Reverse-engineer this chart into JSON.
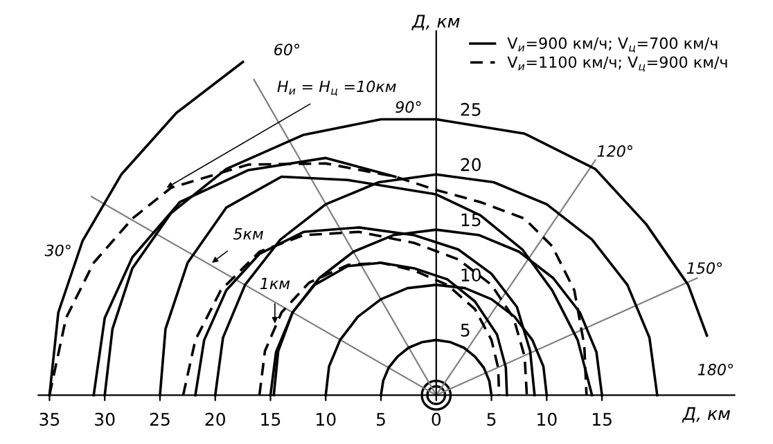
{
  "chart_data": {
    "type": "line",
    "xlabel": "Д, км",
    "ylabel": "Д, км",
    "xlim": [
      -36,
      27
    ],
    "ylim": [
      0,
      33
    ],
    "xticks": [
      {
        "value": -35,
        "label": "35"
      },
      {
        "value": -30,
        "label": "30"
      },
      {
        "value": -25,
        "label": "25"
      },
      {
        "value": -20,
        "label": "20"
      },
      {
        "value": -15,
        "label": "15"
      },
      {
        "value": -10,
        "label": "10"
      },
      {
        "value": -5,
        "label": "5"
      },
      0,
      5,
      10,
      15
    ],
    "yticks": [
      5,
      10,
      15,
      20,
      25
    ],
    "legend": "top right",
    "line_style": "solid",
    "annotations": [
      "30°",
      "60°",
      "90°",
      "120°",
      "150°",
      "180°",
      {
        "text": "H$_{и}$ = H$_{ц}$ =10км",
        "x": -24.4,
        "y": 18.8
      },
      {
        "text": "5км",
        "x": -20.3,
        "y": 12.0
      },
      {
        "text": "1км",
        "x": -14.6,
        "y": 6.5
      }
    ],
    "series": [
      {
        "color": "#808080",
        "x": [
          0,
          -31.2
        ],
        "values": [
          0,
          18.0
        ]
      },
      {
        "color": "#808080",
        "x": [
          0,
          -16.5
        ],
        "values": [
          0,
          28.6
        ]
      },
      {
        "color": "#808080",
        "x": [
          0,
          14.4
        ],
        "values": [
          0,
          21.3
        ]
      },
      {
        "color": "#808080",
        "x": [
          0,
          23.6
        ],
        "values": [
          0,
          10.6
        ]
      },
      {
        "color": "#000000",
        "x": [
          5,
          4.8,
          4.3,
          3.5,
          2.5,
          1.3,
          0,
          -1.3,
          -2.5,
          -3.5,
          -4.3,
          -4.8,
          -5
        ],
        "values": [
          0,
          1.3,
          2.5,
          3.5,
          4.3,
          4.8,
          5,
          4.8,
          4.3,
          3.5,
          2.5,
          1.3,
          0
        ]
      },
      {
        "color": "#000000",
        "x": [
          10,
          9.7,
          8.7,
          7.1,
          5,
          2.6,
          0,
          -2.6,
          -5,
          -7.1,
          -8.7,
          -9.7,
          -10
        ],
        "values": [
          0,
          2.6,
          5,
          7.1,
          8.7,
          9.7,
          10,
          9.7,
          8.7,
          7.1,
          5,
          2.6,
          0
        ]
      },
      {
        "color": "#000000",
        "x": [
          15,
          14.5,
          13,
          10.6,
          7.5,
          3.9,
          0,
          -3.9,
          -7.5,
          -10.6,
          -13,
          -14.5,
          -15
        ],
        "values": [
          0,
          3.9,
          7.5,
          10.6,
          13,
          14.5,
          15,
          14.5,
          13,
          10.6,
          7.5,
          3.9,
          0
        ]
      },
      {
        "color": "#000000",
        "x": [
          20,
          19.3,
          17.3,
          14.1,
          10,
          5.2,
          0,
          -5.2,
          -10,
          -14.1,
          -17.3,
          -19.3,
          -20
        ],
        "values": [
          0,
          5.2,
          10,
          14.1,
          17.3,
          19.3,
          20,
          19.3,
          17.3,
          14.1,
          10,
          5.2,
          0
        ]
      },
      {
        "color": "#000000",
        "x": [
          -35,
          -34.2,
          -32,
          -28.5,
          -23.5,
          -17.5
        ],
        "values": [
          0,
          7.5,
          14,
          20,
          25.6,
          30.2
        ]
      },
      {
        "color": "#000000",
        "x": [
          -30,
          -29.3,
          -27.5,
          -24,
          -19,
          -12,
          -5,
          0,
          8,
          14.4,
          19,
          22.8,
          24.5
        ],
        "values": [
          0,
          6,
          11.5,
          16.5,
          20.5,
          23.6,
          25,
          25,
          23.7,
          20.5,
          15.5,
          10,
          5.4
        ]
      },
      {
        "name": "V$_{и}$=900 км/ч; V$_{ц}$=700 км/ч",
        "color": "#000000",
        "x": [
          -25,
          -24.5,
          -22.5,
          -19,
          -14,
          -8,
          0,
          4,
          7.8,
          10.5,
          12.8,
          14.1
        ],
        "values": [
          0,
          6,
          12,
          17,
          19.8,
          19.5,
          18.2,
          16.3,
          13.2,
          9.5,
          5,
          0
        ]
      },
      {
        "color": "#000000",
        "x": [
          -31,
          -30,
          -27.5,
          -23.2,
          -17,
          -10,
          -3.7
        ],
        "values": [
          0,
          7,
          12.5,
          17.5,
          20.4,
          21.5,
          19.8
        ]
      },
      {
        "name": "V$_{и}$=1100 км/ч; V$_{ц}$=900 км/ч",
        "color": "#000000",
        "line_style": "dashed",
        "x": [
          -35,
          -33.5,
          -31,
          -27.5,
          -24,
          -17,
          -10,
          -3.7,
          0,
          4,
          8,
          10.5,
          12.5,
          13.4,
          13.6
        ],
        "values": [
          0,
          7,
          12,
          16,
          18.8,
          20.9,
          21,
          19.8,
          18.6,
          17.5,
          16,
          13.5,
          9.5,
          4.5,
          0
        ]
      },
      {
        "color": "#000000",
        "x": [
          -21.8,
          -21,
          -19,
          -16,
          -12,
          -7,
          -2,
          2,
          5,
          7.3,
          8.5,
          8.9
        ],
        "values": [
          0,
          5,
          9.5,
          12.8,
          14.8,
          15.2,
          14.5,
          13.2,
          11,
          8,
          4,
          0
        ]
      },
      {
        "color": "#000000",
        "line_style": "dashed",
        "x": [
          -22.9,
          -21.8,
          -19.5,
          -16,
          -12,
          -7,
          -2,
          2,
          5,
          7,
          8,
          8.2
        ],
        "values": [
          0,
          5,
          9.5,
          13,
          14.5,
          14.8,
          13.8,
          12.3,
          10,
          7,
          3.5,
          0
        ]
      },
      {
        "color": "#000000",
        "x": [
          -14.7,
          -14.3,
          -13,
          -11,
          -8,
          -5,
          -2,
          1,
          3.5,
          5.5,
          6.3,
          6.4
        ],
        "values": [
          0,
          4,
          7.5,
          10,
          11.7,
          12,
          11.5,
          10.5,
          8.5,
          5.5,
          2.5,
          0
        ]
      },
      {
        "color": "#000000",
        "line_style": "dashed",
        "x": [
          -16,
          -15.5,
          -14,
          -11.5,
          -8,
          -5,
          -2,
          1,
          3.5,
          5,
          5.6,
          5.7
        ],
        "values": [
          0,
          4,
          7.5,
          10.2,
          11.8,
          12,
          11.3,
          10,
          7.8,
          5,
          2.5,
          0
        ]
      }
    ]
  }
}
